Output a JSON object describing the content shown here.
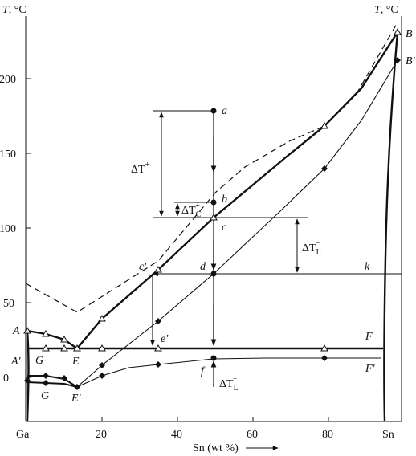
{
  "axes": {
    "y_title_left": "T, °C",
    "y_title_right": "T, °C",
    "x_title": "Sn (wt %)",
    "x_tick_labels": [
      "Ga",
      "20",
      "40",
      "60",
      "80",
      "Sn"
    ],
    "y_tick_labels": [
      "0",
      "50",
      "100",
      "150",
      "200"
    ]
  },
  "points": {
    "A": "A",
    "A_prime": "A'",
    "B": "B",
    "B_prime": "B'",
    "G": "G",
    "G_lower": "G",
    "E": "E",
    "E_prime": "E'",
    "F": "F",
    "F_prime": "F'",
    "a": "a",
    "b": "b",
    "c": "c",
    "d": "d",
    "c_prime": "c'",
    "e_prime": "e'",
    "f": "f",
    "k": "k"
  },
  "annotations": {
    "dT_plus": {
      "base": "ΔT",
      "sup": "+"
    },
    "dT_c_plus": {
      "base": "ΔT",
      "sub": "C",
      "sup": "+"
    },
    "dT_l_minus_upper": {
      "base": "ΔT",
      "sub": "L",
      "sup": "−"
    },
    "dT_l_minus_lower": {
      "base": "ΔT",
      "sub": "L",
      "sup": "−"
    }
  },
  "chart_data": {
    "type": "line",
    "xlabel": "Sn (wt %)",
    "ylabel": "T, °C",
    "xlim": [
      0,
      100
    ],
    "ylim": [
      -30,
      235
    ],
    "x_ticks": [
      20,
      40,
      60,
      80
    ],
    "y_ticks": [
      0,
      50,
      100,
      150,
      200
    ],
    "curves": [
      {
        "id": "liquidus-equilibrium",
        "style": "thick",
        "points": [
          [
            14,
            21
          ],
          [
            20,
            40
          ],
          [
            35,
            72
          ],
          [
            50,
            106
          ],
          [
            80,
            168
          ],
          [
            99,
            230
          ]
        ]
      },
      {
        "id": "liquidus-metastable",
        "style": "dashed",
        "points": [
          [
            0,
            63
          ],
          [
            14,
            44
          ],
          [
            35,
            78
          ],
          [
            50,
            123
          ],
          [
            80,
            167
          ],
          [
            99,
            236
          ]
        ]
      },
      {
        "id": "liquidus-supercooled",
        "style": "thin",
        "points": [
          [
            14,
            -7
          ],
          [
            20,
            7
          ],
          [
            35,
            38
          ],
          [
            50,
            70
          ],
          [
            80,
            140
          ],
          [
            99,
            212
          ]
        ]
      },
      {
        "id": "solvus-Ga-upper",
        "style": "thick",
        "points": [
          [
            0,
            30
          ],
          [
            5,
            28
          ],
          [
            10,
            26
          ],
          [
            14,
            21
          ]
        ]
      },
      {
        "id": "solvus-Ga-lower",
        "style": "thin",
        "points": [
          [
            0,
            0
          ],
          [
            5,
            0
          ],
          [
            10,
            -3
          ],
          [
            14,
            -7
          ]
        ]
      },
      {
        "id": "eutectic-G-E",
        "style": "thin",
        "points": [
          [
            0,
            -4
          ],
          [
            5,
            -4
          ],
          [
            10,
            -5
          ],
          [
            14,
            -7
          ]
        ]
      },
      {
        "id": "eutectic-line-EF",
        "style": "thick",
        "points": [
          [
            0,
            21
          ],
          [
            98,
            21
          ]
        ]
      },
      {
        "id": "eutectic-line-EprimeFprime",
        "style": "thin",
        "points": [
          [
            14,
            -7
          ],
          [
            20,
            7
          ],
          [
            35,
            8
          ],
          [
            50,
            12
          ],
          [
            80,
            13
          ],
          [
            98,
            13
          ]
        ]
      },
      {
        "id": "Sn-solidus",
        "style": "thick",
        "points": [
          [
            98,
            -30
          ],
          [
            97,
            20
          ],
          [
            97,
            100
          ],
          [
            98,
            190
          ],
          [
            99,
            230
          ]
        ]
      },
      {
        "id": "Ga-axis",
        "style": "thick",
        "points": [
          [
            0,
            -30
          ],
          [
            0,
            30
          ]
        ]
      },
      {
        "id": "isotherm-k",
        "style": "thin",
        "points": [
          [
            35,
            70
          ],
          [
            100,
            70
          ]
        ]
      }
    ],
    "markers": [
      {
        "label": "a",
        "shape": "dot",
        "x": 50,
        "y": 178
      },
      {
        "label": "b",
        "shape": "dot",
        "x": 50,
        "y": 116
      },
      {
        "label": "c",
        "shape": "triangle",
        "x": 50,
        "y": 106
      },
      {
        "label": "d",
        "shape": "dot",
        "x": 50,
        "y": 70
      },
      {
        "label": "f",
        "shape": "dot",
        "x": 50,
        "y": 12
      }
    ]
  }
}
